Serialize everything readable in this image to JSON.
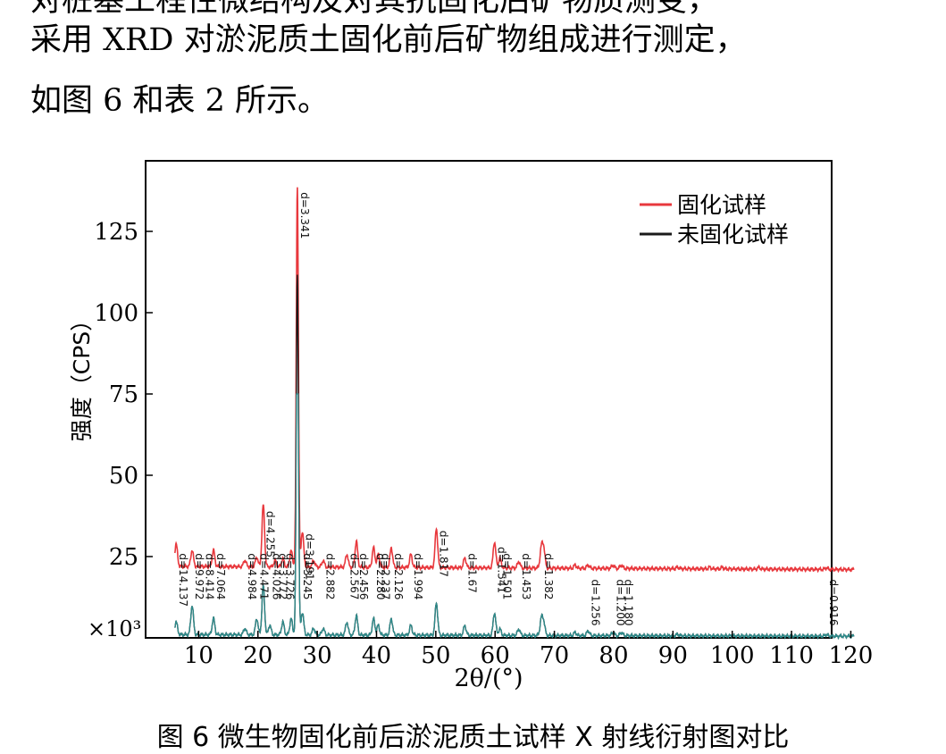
{
  "text": {
    "line0": "对桩基工程性微结构及对其抗固化后矿物质测变，",
    "line1": "采用 XRD 对淤泥质土固化前后矿物组成进行测定，",
    "line2": "如图 6 和表 2 所示。",
    "caption": "图 6  微生物固化前后淤泥质土试样 X 射线衍射图对比"
  },
  "chart_data": {
    "type": "line",
    "xlabel": "2θ/(°)",
    "ylabel": "强度（CPS）",
    "y_unit_label": "×10³",
    "xlim": [
      5,
      121
    ],
    "ylim": [
      0,
      140
    ],
    "xticks": [
      10,
      20,
      30,
      40,
      50,
      60,
      70,
      80,
      90,
      100,
      110,
      120
    ],
    "yticks": [
      25,
      50,
      75,
      100,
      125
    ],
    "legend_position": "top-right",
    "grid": false,
    "series": [
      {
        "name": "固化试样",
        "color": "#e8383d",
        "baseline": 22,
        "baseline_end": 21,
        "peaks": [
          {
            "x": 6.2,
            "y": 29
          },
          {
            "x": 8.9,
            "y": 27
          },
          {
            "x": 12.5,
            "y": 27
          },
          {
            "x": 17.8,
            "y": 24
          },
          {
            "x": 19.8,
            "y": 25
          },
          {
            "x": 20.9,
            "y": 41
          },
          {
            "x": 22.9,
            "y": 24
          },
          {
            "x": 24.2,
            "y": 24.5
          },
          {
            "x": 25.6,
            "y": 27
          },
          {
            "x": 26.65,
            "y": 139
          },
          {
            "x": 27.5,
            "y": 33
          },
          {
            "x": 29.4,
            "y": 24
          },
          {
            "x": 31.0,
            "y": 24
          },
          {
            "x": 35.0,
            "y": 26
          },
          {
            "x": 36.6,
            "y": 30
          },
          {
            "x": 39.5,
            "y": 28
          },
          {
            "x": 40.3,
            "y": 26
          },
          {
            "x": 42.5,
            "y": 28
          },
          {
            "x": 45.8,
            "y": 26
          },
          {
            "x": 50.1,
            "y": 34
          },
          {
            "x": 54.9,
            "y": 25
          },
          {
            "x": 59.9,
            "y": 30
          },
          {
            "x": 60.8,
            "y": 25
          },
          {
            "x": 64.0,
            "y": 24
          },
          {
            "x": 67.8,
            "y": 28
          },
          {
            "x": 68.2,
            "y": 28
          },
          {
            "x": 73.5,
            "y": 23
          },
          {
            "x": 75.7,
            "y": 23
          },
          {
            "x": 79.9,
            "y": 23
          },
          {
            "x": 81.3,
            "y": 23
          },
          {
            "x": 90.8,
            "y": 22.5
          },
          {
            "x": 96.2,
            "y": 22.5
          },
          {
            "x": 98.3,
            "y": 22.5
          },
          {
            "x": 104.5,
            "y": 22.5
          },
          {
            "x": 115.9,
            "y": 22.5
          }
        ]
      },
      {
        "name": "未固化试样",
        "color": "#1a1a1a",
        "baseline": 1,
        "baseline_end": 0.5,
        "peaks": [
          {
            "x": 6.2,
            "y": 5
          },
          {
            "x": 8.9,
            "y": 10
          },
          {
            "x": 12.5,
            "y": 6
          },
          {
            "x": 17.8,
            "y": 3
          },
          {
            "x": 19.8,
            "y": 6
          },
          {
            "x": 20.9,
            "y": 16
          },
          {
            "x": 22.0,
            "y": 4
          },
          {
            "x": 24.2,
            "y": 5
          },
          {
            "x": 25.6,
            "y": 6
          },
          {
            "x": 26.65,
            "y": 112
          },
          {
            "x": 27.5,
            "y": 8
          },
          {
            "x": 29.4,
            "y": 3
          },
          {
            "x": 31.0,
            "y": 3
          },
          {
            "x": 35.0,
            "y": 5
          },
          {
            "x": 36.6,
            "y": 7
          },
          {
            "x": 39.5,
            "y": 6
          },
          {
            "x": 40.3,
            "y": 4
          },
          {
            "x": 42.5,
            "y": 6
          },
          {
            "x": 45.8,
            "y": 4
          },
          {
            "x": 50.1,
            "y": 11
          },
          {
            "x": 54.9,
            "y": 4
          },
          {
            "x": 59.9,
            "y": 8
          },
          {
            "x": 60.8,
            "y": 3
          },
          {
            "x": 64.0,
            "y": 3
          },
          {
            "x": 67.8,
            "y": 6
          },
          {
            "x": 68.2,
            "y": 5
          },
          {
            "x": 73.5,
            "y": 2
          },
          {
            "x": 75.7,
            "y": 2.5
          },
          {
            "x": 79.9,
            "y": 2
          },
          {
            "x": 81.3,
            "y": 2
          },
          {
            "x": 90.8,
            "y": 1.5
          },
          {
            "x": 115.9,
            "y": 1.5
          }
        ]
      }
    ],
    "annotations": [
      {
        "x": 6.2,
        "text": "d=14.137"
      },
      {
        "x": 8.9,
        "text": "d=9.972"
      },
      {
        "x": 10.6,
        "text": "d=8.414"
      },
      {
        "x": 12.5,
        "text": "d=7.064"
      },
      {
        "x": 17.8,
        "text": "d=4.984"
      },
      {
        "x": 19.8,
        "text": "d=4.471"
      },
      {
        "x": 20.9,
        "text": "d=4.255"
      },
      {
        "x": 21.9,
        "text": "d=4.026"
      },
      {
        "x": 23.0,
        "text": "d=3.772"
      },
      {
        "x": 24.2,
        "text": "d=3.726"
      },
      {
        "x": 26.65,
        "text": "d=3.341"
      },
      {
        "x": 27.5,
        "text": "d=3.191"
      },
      {
        "x": 27.1,
        "text": "d=3.245"
      },
      {
        "x": 31.0,
        "text": "d=2.882"
      },
      {
        "x": 35.0,
        "text": "d=2.567"
      },
      {
        "x": 36.6,
        "text": "d=2.456"
      },
      {
        "x": 39.5,
        "text": "d=2.280"
      },
      {
        "x": 40.3,
        "text": "d=2.237"
      },
      {
        "x": 42.5,
        "text": "d=2.126"
      },
      {
        "x": 45.8,
        "text": "d=1.994"
      },
      {
        "x": 50.1,
        "text": "d=1.817"
      },
      {
        "x": 54.9,
        "text": "d=1.67"
      },
      {
        "x": 59.9,
        "text": "d=1.541"
      },
      {
        "x": 60.8,
        "text": "d=1.501"
      },
      {
        "x": 64.0,
        "text": "d=1.453"
      },
      {
        "x": 67.8,
        "text": "d=1.382"
      },
      {
        "x": 75.7,
        "text": "d=1.256"
      },
      {
        "x": 79.9,
        "text": "d=1.200"
      },
      {
        "x": 81.3,
        "text": "d=1.180"
      },
      {
        "x": 115.9,
        "text": "d=0.916"
      }
    ]
  }
}
